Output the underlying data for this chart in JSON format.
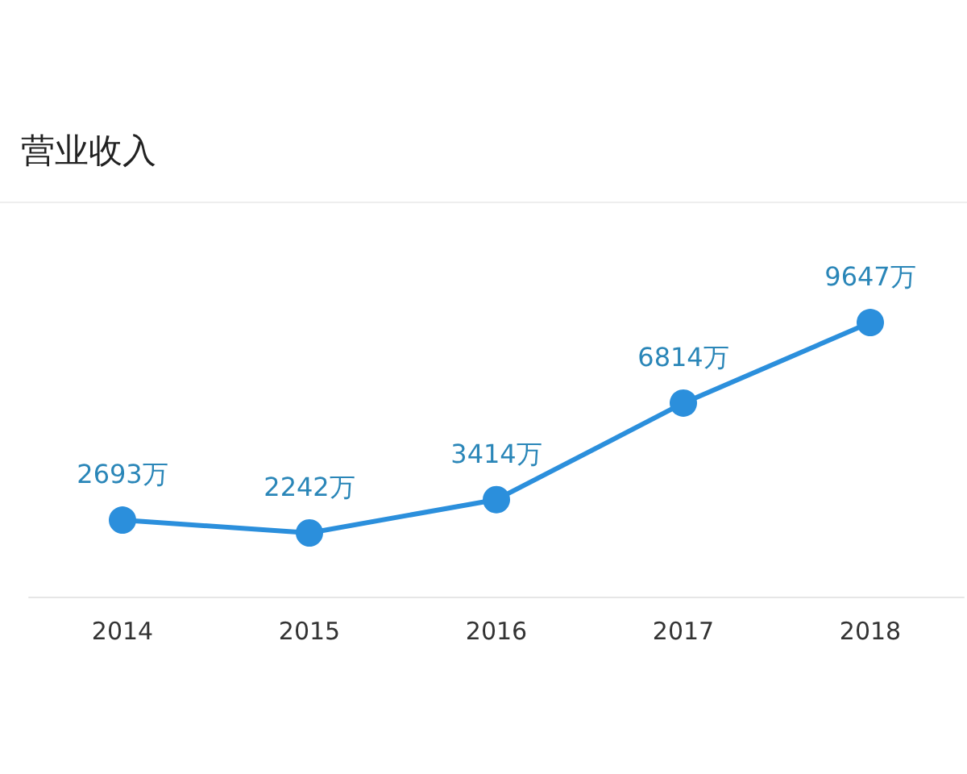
{
  "chart_data": {
    "type": "line",
    "title": "营业收入",
    "categories": [
      "2014",
      "2015",
      "2016",
      "2017",
      "2018"
    ],
    "series": [
      {
        "color": "#2b8fdc",
        "values": [
          2693,
          2242,
          3414,
          6814,
          9647
        ],
        "value_labels": [
          "2693万",
          "2242万",
          "3414万",
          "6814万",
          "9647万"
        ]
      }
    ],
    "marker": "circle",
    "line_style": "solid",
    "grid": false,
    "tick_labels": "x"
  }
}
